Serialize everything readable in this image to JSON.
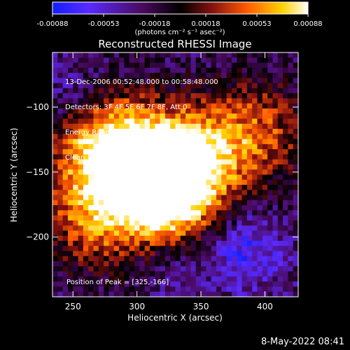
{
  "colorbar": {
    "ticks": [
      "-0.00088",
      "-0.00053",
      "-0.00018",
      "0.00018",
      "0.00053",
      "0.00088"
    ],
    "units_text": "(photons cm⁻² s⁻¹ asec⁻²)",
    "colors": [
      "#1020ff",
      "#5a2aff",
      "#4a0a60",
      "#000000",
      "#801010",
      "#ff5a00",
      "#ffd200",
      "#ffffff"
    ]
  },
  "title": "Reconstructed RHESSI Image",
  "info": {
    "line1": "13-Dec-2006 00:52:48.000 to 00:58:48.000",
    "line2": "Detectors: 3F 4F 5F 6F 7F 8F, Att 0",
    "line3": "Energy Range: 12.0 - 25.0 keV",
    "line4": "Clean     Total counts: 1.97E+04"
  },
  "peak_text": "Position of Peak = [325,-166]",
  "footer_date": "8-May-2022 08:41",
  "chart_data": {
    "type": "heatmap",
    "title": "Reconstructed RHESSI Image",
    "xlabel": "Heliocentric X (arcsec)",
    "ylabel": "Heliocentric Y (arcsec)",
    "xlim": [
      234,
      426
    ],
    "ylim": [
      -246,
      -58
    ],
    "xticks": [
      250,
      300,
      350,
      400
    ],
    "yticks": [
      -100,
      -150,
      -200
    ],
    "colorbar_range": [
      -0.00088,
      0.00088
    ],
    "peak_position": [
      325,
      -166
    ],
    "source_blobs": [
      {
        "x": 325,
        "y": -166,
        "value": 0.00088
      },
      {
        "x": 300,
        "y": -145,
        "value": 0.00065
      },
      {
        "x": 270,
        "y": -125,
        "value": 0.0005
      },
      {
        "x": 345,
        "y": -135,
        "value": 0.00045
      },
      {
        "x": 265,
        "y": -185,
        "value": 0.0004
      },
      {
        "x": 395,
        "y": -120,
        "value": 0.00035
      },
      {
        "x": 250,
        "y": -95,
        "value": -0.0003
      },
      {
        "x": 385,
        "y": -210,
        "value": -0.00045
      },
      {
        "x": 330,
        "y": -225,
        "value": -0.0002
      }
    ]
  }
}
